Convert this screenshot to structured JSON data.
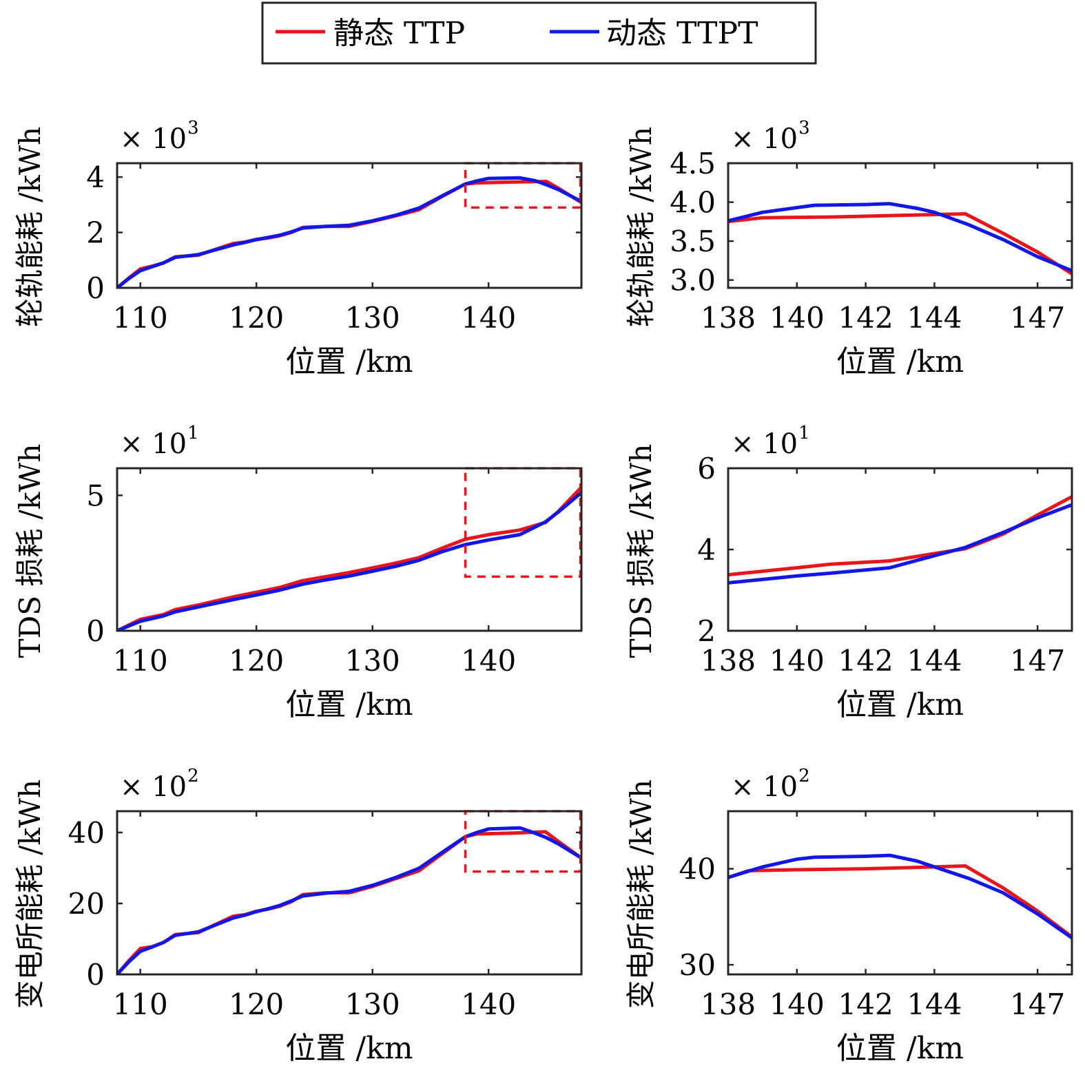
{
  "legend": {
    "items": [
      {
        "label": "静态 TTP",
        "color": "#e8161b"
      },
      {
        "label": "动态 TTPT",
        "color": "#1017e6"
      }
    ]
  },
  "colors": {
    "series_static": "#e8161b",
    "series_dynamic": "#1017e6",
    "zoom_box": "#e8161b",
    "axes": "#262626"
  },
  "chart_data": [
    {
      "type": "line",
      "xlabel": "位置 /km",
      "ylabel": "轮轨能耗 /kWh",
      "scale_base": "×  10",
      "scale_exp": "3",
      "xlim": [
        108,
        148
      ],
      "ylim": [
        0,
        4.5
      ],
      "xticks": [
        110,
        120,
        130,
        140
      ],
      "yticks": [
        0,
        2,
        4
      ],
      "ytick_labels": [
        "0",
        "2",
        "4"
      ],
      "zoom_box": {
        "x": [
          138,
          148
        ],
        "y": [
          2.9,
          4.5
        ]
      },
      "series": [
        {
          "name": "静态 TTP",
          "points": [
            [
              108,
              0
            ],
            [
              109,
              0.35
            ],
            [
              110,
              0.68
            ],
            [
              111,
              0.78
            ],
            [
              112,
              0.9
            ],
            [
              113,
              1.12
            ],
            [
              115,
              1.18
            ],
            [
              118,
              1.6
            ],
            [
              119,
              1.65
            ],
            [
              120,
              1.75
            ],
            [
              121,
              1.8
            ],
            [
              122,
              1.88
            ],
            [
              123,
              2.0
            ],
            [
              124,
              2.18
            ],
            [
              126,
              2.22
            ],
            [
              128,
              2.22
            ],
            [
              130,
              2.4
            ],
            [
              132,
              2.6
            ],
            [
              134,
              2.82
            ],
            [
              136,
              3.3
            ],
            [
              138,
              3.75
            ],
            [
              139,
              3.79
            ],
            [
              142,
              3.82
            ],
            [
              145,
              3.84
            ],
            [
              146,
              3.6
            ],
            [
              148,
              3.08
            ]
          ]
        },
        {
          "name": "动态 TTPT",
          "points": [
            [
              108,
              0
            ],
            [
              109,
              0.33
            ],
            [
              110,
              0.62
            ],
            [
              111,
              0.76
            ],
            [
              112,
              0.9
            ],
            [
              113,
              1.1
            ],
            [
              115,
              1.2
            ],
            [
              118,
              1.55
            ],
            [
              119,
              1.64
            ],
            [
              120,
              1.74
            ],
            [
              121,
              1.82
            ],
            [
              122,
              1.9
            ],
            [
              123,
              2.02
            ],
            [
              124,
              2.16
            ],
            [
              126,
              2.22
            ],
            [
              128,
              2.26
            ],
            [
              130,
              2.42
            ],
            [
              132,
              2.62
            ],
            [
              134,
              2.88
            ],
            [
              136,
              3.32
            ],
            [
              138,
              3.75
            ],
            [
              139,
              3.86
            ],
            [
              140,
              3.95
            ],
            [
              142.7,
              3.97
            ],
            [
              144,
              3.87
            ],
            [
              145,
              3.72
            ],
            [
              146,
              3.55
            ],
            [
              148,
              3.12
            ]
          ]
        }
      ]
    },
    {
      "type": "line",
      "xlabel": "位置 /km",
      "ylabel": "轮轨能耗 /kWh",
      "scale_base": "×  10",
      "scale_exp": "3",
      "xlim": [
        138,
        148
      ],
      "ylim": [
        2.9,
        4.5
      ],
      "xticks": [
        138,
        140,
        142,
        144,
        147
      ],
      "yticks": [
        3.0,
        3.5,
        4.0,
        4.5
      ],
      "ytick_labels": [
        "3.0",
        "3.5",
        "4.0",
        "4.5"
      ],
      "series": [
        {
          "name": "静态 TTP",
          "points": [
            [
              138,
              3.75
            ],
            [
              139,
              3.8
            ],
            [
              141,
              3.81
            ],
            [
              143,
              3.83
            ],
            [
              144.9,
              3.85
            ],
            [
              146,
              3.6
            ],
            [
              147,
              3.36
            ],
            [
              148,
              3.08
            ]
          ]
        },
        {
          "name": "动态 TTPT",
          "points": [
            [
              138,
              3.76
            ],
            [
              139,
              3.87
            ],
            [
              140,
              3.93
            ],
            [
              140.5,
              3.96
            ],
            [
              142,
              3.97
            ],
            [
              142.7,
              3.98
            ],
            [
              143.5,
              3.92
            ],
            [
              144,
              3.87
            ],
            [
              145,
              3.71
            ],
            [
              146,
              3.52
            ],
            [
              147,
              3.3
            ],
            [
              148,
              3.12
            ]
          ]
        }
      ]
    },
    {
      "type": "line",
      "xlabel": "位置 /km",
      "ylabel": "TDS 损耗 /kWh",
      "scale_base": "×  10",
      "scale_exp": "1",
      "xlim": [
        108,
        148
      ],
      "ylim": [
        0,
        6
      ],
      "xticks": [
        110,
        120,
        130,
        140
      ],
      "yticks": [
        0,
        5
      ],
      "ytick_labels": [
        "0",
        "5"
      ],
      "zoom_box": {
        "x": [
          138,
          148
        ],
        "y": [
          2,
          6
        ]
      },
      "series": [
        {
          "name": "静态 TTP",
          "points": [
            [
              108,
              0
            ],
            [
              110,
              0.42
            ],
            [
              112,
              0.6
            ],
            [
              113,
              0.78
            ],
            [
              115,
              0.95
            ],
            [
              118,
              1.25
            ],
            [
              120,
              1.42
            ],
            [
              122,
              1.6
            ],
            [
              124,
              1.85
            ],
            [
              126,
              2.0
            ],
            [
              128,
              2.15
            ],
            [
              130,
              2.32
            ],
            [
              132,
              2.5
            ],
            [
              134,
              2.7
            ],
            [
              136,
              3.05
            ],
            [
              138,
              3.38
            ],
            [
              140,
              3.55
            ],
            [
              142.7,
              3.72
            ],
            [
              144.9,
              4.0
            ],
            [
              146,
              4.4
            ],
            [
              148,
              5.3
            ]
          ]
        },
        {
          "name": "动态 TTPT",
          "points": [
            [
              108,
              0
            ],
            [
              110,
              0.35
            ],
            [
              112,
              0.55
            ],
            [
              113,
              0.7
            ],
            [
              115,
              0.88
            ],
            [
              118,
              1.15
            ],
            [
              120,
              1.32
            ],
            [
              122,
              1.5
            ],
            [
              124,
              1.72
            ],
            [
              126,
              1.88
            ],
            [
              128,
              2.02
            ],
            [
              130,
              2.2
            ],
            [
              132,
              2.38
            ],
            [
              134,
              2.6
            ],
            [
              136,
              2.92
            ],
            [
              138,
              3.18
            ],
            [
              140,
              3.35
            ],
            [
              142.7,
              3.55
            ],
            [
              144.9,
              4.02
            ],
            [
              146,
              4.38
            ],
            [
              148,
              5.1
            ]
          ]
        }
      ]
    },
    {
      "type": "line",
      "xlabel": "位置 /km",
      "ylabel": "TDS 损耗 /kWh",
      "scale_base": "×  10",
      "scale_exp": "1",
      "xlim": [
        138,
        148
      ],
      "ylim": [
        2,
        6
      ],
      "xticks": [
        138,
        140,
        142,
        144,
        147
      ],
      "yticks": [
        2,
        4,
        6
      ],
      "ytick_labels": [
        "2",
        "4",
        "6"
      ],
      "series": [
        {
          "name": "静态 TTP",
          "points": [
            [
              138,
              3.38
            ],
            [
              140,
              3.55
            ],
            [
              141,
              3.64
            ],
            [
              142.7,
              3.72
            ],
            [
              144,
              3.9
            ],
            [
              144.9,
              4.02
            ],
            [
              146,
              4.38
            ],
            [
              147,
              4.85
            ],
            [
              148,
              5.3
            ]
          ]
        },
        {
          "name": "动态 TTPT",
          "points": [
            [
              138,
              3.18
            ],
            [
              140,
              3.35
            ],
            [
              141,
              3.42
            ],
            [
              142.7,
              3.55
            ],
            [
              144,
              3.85
            ],
            [
              144.9,
              4.05
            ],
            [
              146,
              4.42
            ],
            [
              147,
              4.78
            ],
            [
              148,
              5.1
            ]
          ]
        }
      ]
    },
    {
      "type": "line",
      "xlabel": "位置 /km",
      "ylabel": "变电所能耗 /kWh",
      "scale_base": "×  10",
      "scale_exp": "2",
      "xlim": [
        108,
        148
      ],
      "ylim": [
        0,
        46
      ],
      "xticks": [
        110,
        120,
        130,
        140
      ],
      "yticks": [
        0,
        20,
        40
      ],
      "ytick_labels": [
        "0",
        "20",
        "40"
      ],
      "zoom_box": {
        "x": [
          138,
          148
        ],
        "y": [
          29,
          46
        ]
      },
      "series": [
        {
          "name": "静态 TTP",
          "points": [
            [
              108,
              0
            ],
            [
              109,
              3.8
            ],
            [
              110,
              7.3
            ],
            [
              111,
              7.8
            ],
            [
              112,
              9.0
            ],
            [
              113,
              11.2
            ],
            [
              115,
              11.8
            ],
            [
              118,
              16.4
            ],
            [
              119,
              16.8
            ],
            [
              120,
              17.8
            ],
            [
              121,
              18.4
            ],
            [
              122,
              19.2
            ],
            [
              123,
              20.5
            ],
            [
              124,
              22.5
            ],
            [
              126,
              23.0
            ],
            [
              128,
              23.0
            ],
            [
              130,
              24.8
            ],
            [
              132,
              27.0
            ],
            [
              134,
              29.2
            ],
            [
              136,
              34.0
            ],
            [
              138,
              38.8
            ],
            [
              139,
              39.6
            ],
            [
              142,
              39.8
            ],
            [
              144.9,
              40.2
            ],
            [
              146,
              37.5
            ],
            [
              148,
              32.8
            ]
          ]
        },
        {
          "name": "动态 TTPT",
          "points": [
            [
              108,
              0
            ],
            [
              109,
              3.5
            ],
            [
              110,
              6.5
            ],
            [
              111,
              7.7
            ],
            [
              112,
              9.0
            ],
            [
              113,
              11.0
            ],
            [
              115,
              12.0
            ],
            [
              118,
              15.9
            ],
            [
              119,
              16.7
            ],
            [
              120,
              17.7
            ],
            [
              121,
              18.5
            ],
            [
              122,
              19.4
            ],
            [
              123,
              20.7
            ],
            [
              124,
              22.1
            ],
            [
              126,
              22.9
            ],
            [
              128,
              23.4
            ],
            [
              130,
              25.1
            ],
            [
              132,
              27.3
            ],
            [
              134,
              29.9
            ],
            [
              136,
              34.4
            ],
            [
              138,
              38.8
            ],
            [
              139,
              40.0
            ],
            [
              140,
              41.0
            ],
            [
              142.7,
              41.3
            ],
            [
              144,
              39.8
            ],
            [
              145,
              38.5
            ],
            [
              146,
              36.8
            ],
            [
              148,
              32.8
            ]
          ]
        }
      ]
    },
    {
      "type": "line",
      "xlabel": "位置 /km",
      "ylabel": "变电所能耗 /kWh",
      "scale_base": "×  10",
      "scale_exp": "2",
      "xlim": [
        138,
        148
      ],
      "ylim": [
        29,
        46
      ],
      "xticks": [
        138,
        140,
        142,
        144,
        147
      ],
      "yticks": [
        30,
        40
      ],
      "ytick_labels": [
        "30",
        "40"
      ],
      "series": [
        {
          "name": "静态 TTP",
          "points": [
            [
              138,
              39.1
            ],
            [
              138.6,
              39.8
            ],
            [
              140,
              39.9
            ],
            [
              142,
              40.0
            ],
            [
              143,
              40.1
            ],
            [
              144.9,
              40.3
            ],
            [
              146,
              38.0
            ],
            [
              147,
              35.6
            ],
            [
              148,
              32.9
            ]
          ]
        },
        {
          "name": "动态 TTPT",
          "points": [
            [
              138,
              39.1
            ],
            [
              139,
              40.2
            ],
            [
              140,
              41.0
            ],
            [
              140.5,
              41.2
            ],
            [
              142,
              41.3
            ],
            [
              142.7,
              41.4
            ],
            [
              143.5,
              40.8
            ],
            [
              144,
              40.2
            ],
            [
              145,
              39.0
            ],
            [
              146,
              37.5
            ],
            [
              147,
              35.3
            ],
            [
              148,
              32.8
            ]
          ]
        }
      ]
    }
  ]
}
